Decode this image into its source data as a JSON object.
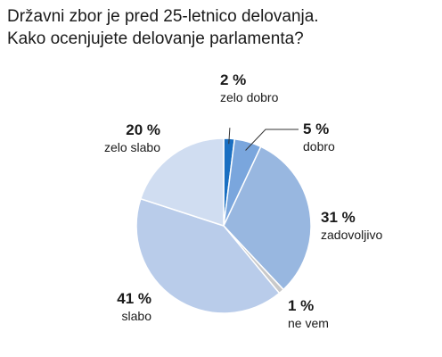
{
  "title": {
    "line1": "Državni zbor je pred 25-letnico delovanja.",
    "line2": "Kako ocenjujete delovanje parlamenta?"
  },
  "chart_data": {
    "type": "pie",
    "title": "Državni zbor je pred 25-letnico delovanja. Kako ocenjujete delovanje parlamenta?",
    "start": "12 o'clock, clockwise",
    "slices": [
      {
        "label": "zelo dobro",
        "value": 2,
        "value_label": "2 %",
        "color": "#1a6fc2"
      },
      {
        "label": "dobro",
        "value": 5,
        "value_label": "5 %",
        "color": "#7aa6dd"
      },
      {
        "label": "zadovoljivo",
        "value": 31,
        "value_label": "31 %",
        "color": "#98b7e0"
      },
      {
        "label": "ne vem",
        "value": 1,
        "value_label": "1 %",
        "color": "#c9c9c9"
      },
      {
        "label": "slabo",
        "value": 41,
        "value_label": "41 %",
        "color": "#b9ccea"
      },
      {
        "label": "zelo slabo",
        "value": 20,
        "value_label": "20 %",
        "color": "#d0ddf1"
      }
    ],
    "leader_line_color": "#333333"
  }
}
